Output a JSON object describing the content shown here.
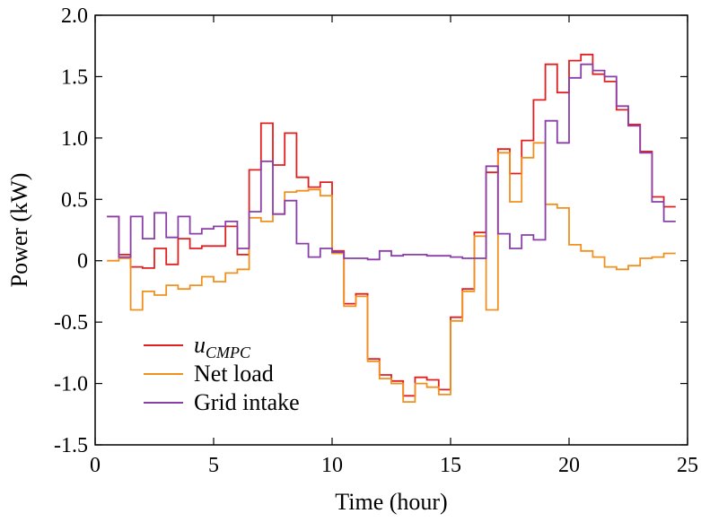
{
  "chart_data": {
    "type": "line",
    "step": true,
    "xlabel": "Time (hour)",
    "ylabel": "Power (kW)",
    "xlim": [
      0,
      25
    ],
    "ylim": [
      -1.5,
      2.0
    ],
    "xticks": [
      "0",
      "5",
      "10",
      "15",
      "20",
      "25"
    ],
    "yticks": [
      "-1.5",
      "-1.0",
      "-0.5",
      "0",
      "0.5",
      "1.0",
      "1.5",
      "2.0"
    ],
    "grid": false,
    "legend_position": "lower-left",
    "x": [
      0.5,
      1,
      1.5,
      2,
      2.5,
      3,
      3.5,
      4,
      4.5,
      5,
      5.5,
      6,
      6.5,
      7,
      7.5,
      8,
      8.5,
      9,
      9.5,
      10,
      10.5,
      11,
      11.5,
      12,
      12.5,
      13,
      13.5,
      14,
      14.5,
      15,
      15.5,
      16,
      16.5,
      17,
      17.5,
      18,
      18.5,
      19,
      19.5,
      20,
      20.5,
      21,
      21.5,
      22,
      22.5,
      23,
      23.5,
      24
    ],
    "series": [
      {
        "name": "u",
        "name_subscript": "CMPC",
        "color": "#e02020",
        "values": [
          0.36,
          0.05,
          -0.05,
          -0.06,
          0.1,
          -0.03,
          0.18,
          0.1,
          0.12,
          0.12,
          0.28,
          0.05,
          0.74,
          1.12,
          0.78,
          1.04,
          0.68,
          0.6,
          0.64,
          0.08,
          -0.35,
          -0.27,
          -0.8,
          -0.93,
          -0.98,
          -1.1,
          -0.95,
          -0.97,
          -1.05,
          -0.46,
          -0.23,
          0.23,
          0.72,
          0.91,
          0.71,
          0.98,
          1.31,
          1.6,
          1.37,
          1.63,
          1.68,
          1.52,
          1.46,
          1.23,
          1.11,
          0.89,
          0.52,
          0.44
        ]
      },
      {
        "name": "Net load",
        "color": "#f0901e",
        "values": [
          0.0,
          0.02,
          -0.4,
          -0.25,
          -0.28,
          -0.2,
          -0.23,
          -0.2,
          -0.13,
          -0.17,
          -0.1,
          -0.07,
          0.35,
          0.32,
          0.38,
          0.56,
          0.57,
          0.58,
          0.53,
          0.06,
          -0.37,
          -0.29,
          -0.82,
          -0.96,
          -1.0,
          -1.15,
          -1.0,
          -1.03,
          -1.09,
          -0.49,
          -0.25,
          0.2,
          -0.4,
          0.88,
          0.48,
          0.84,
          0.96,
          0.46,
          0.43,
          0.13,
          0.08,
          0.03,
          -0.05,
          -0.07,
          -0.04,
          0.02,
          0.03,
          0.06
        ]
      },
      {
        "name": "Grid intake",
        "color": "#8a3fa8",
        "values": [
          0.36,
          0.03,
          0.36,
          0.18,
          0.39,
          0.19,
          0.36,
          0.22,
          0.26,
          0.28,
          0.32,
          0.1,
          0.4,
          0.81,
          0.38,
          0.49,
          0.14,
          0.03,
          0.1,
          0.07,
          0.02,
          0.02,
          0.01,
          0.08,
          0.04,
          0.05,
          0.05,
          0.04,
          0.04,
          0.03,
          0.02,
          0.02,
          0.77,
          0.22,
          0.1,
          0.21,
          0.17,
          1.14,
          0.96,
          1.49,
          1.6,
          1.55,
          1.5,
          1.26,
          1.1,
          0.88,
          0.48,
          0.32
        ]
      }
    ]
  }
}
